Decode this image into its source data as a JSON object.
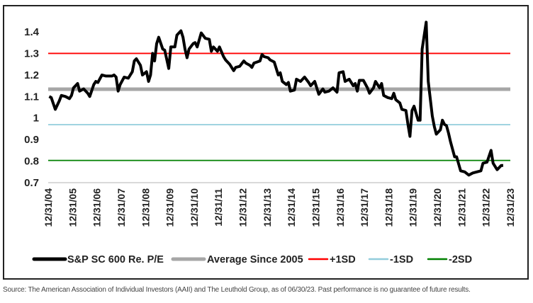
{
  "chart_data": {
    "type": "line",
    "title": "",
    "xlabel": "",
    "ylabel": "",
    "ylim": [
      0.7,
      1.4
    ],
    "yticks": [
      "0.7",
      "0.8",
      "0.9",
      "1",
      "1.1",
      "1.2",
      "1.3",
      "1.4"
    ],
    "xticks": [
      "12/31/04",
      "12/31/05",
      "12/31/06",
      "12/31/07",
      "12/31/08",
      "12/31/09",
      "12/31/10",
      "12/31/11",
      "12/31/12",
      "12/31/13",
      "12/31/14",
      "12/31/15",
      "12/31/16",
      "12/31/17",
      "12/31/18",
      "12/31/19",
      "12/31/20",
      "12/31/21",
      "12/31/22",
      "12/31/23"
    ],
    "grid": false,
    "legend_placement": "bottom",
    "series": [
      {
        "name": "S&P SC 600 Re. P/E",
        "color": "#000000",
        "x": [
          "2005-01",
          "2005-02",
          "2005-04",
          "2005-06",
          "2005-07",
          "2005-09",
          "2005-11",
          "2005-12",
          "2006-01",
          "2006-03",
          "2006-04",
          "2006-06",
          "2006-08",
          "2006-09",
          "2006-11",
          "2006-12",
          "2007-01",
          "2007-03",
          "2007-05",
          "2007-08",
          "2007-09",
          "2007-10",
          "2007-11",
          "2007-12",
          "2008-02",
          "2008-04",
          "2008-06",
          "2008-07",
          "2008-08",
          "2008-10",
          "2008-11",
          "2009-01",
          "2009-02",
          "2009-03",
          "2009-04",
          "2009-05",
          "2009-06",
          "2009-07",
          "2009-09",
          "2009-10",
          "2009-12",
          "2010-01",
          "2010-03",
          "2010-04",
          "2010-06",
          "2010-07",
          "2010-08",
          "2010-09",
          "2010-10",
          "2010-12",
          "2011-01",
          "2011-02",
          "2011-04",
          "2011-06",
          "2011-08",
          "2011-09",
          "2011-10",
          "2011-12",
          "2012-01",
          "2012-03",
          "2012-04",
          "2012-06",
          "2012-08",
          "2012-09",
          "2012-11",
          "2013-01",
          "2013-02",
          "2013-04",
          "2013-05",
          "2013-06",
          "2013-09",
          "2013-10",
          "2013-11",
          "2014-01",
          "2014-02",
          "2014-04",
          "2014-06",
          "2014-07",
          "2014-08",
          "2014-10",
          "2014-11",
          "2014-12",
          "2015-02",
          "2015-03",
          "2015-05",
          "2015-07",
          "2015-09",
          "2015-10",
          "2015-12",
          "2016-02",
          "2016-04",
          "2016-05",
          "2016-07",
          "2016-09",
          "2016-11",
          "2016-12",
          "2017-02",
          "2017-03",
          "2017-05",
          "2017-07",
          "2017-08",
          "2017-09",
          "2017-10",
          "2017-12",
          "2018-02",
          "2018-03",
          "2018-05",
          "2018-06",
          "2018-08",
          "2018-09",
          "2018-10",
          "2018-12",
          "2019-02",
          "2019-03",
          "2019-04",
          "2019-06",
          "2019-07",
          "2019-09",
          "2019-10",
          "2019-11",
          "2019-12",
          "2020-01",
          "2020-03",
          "2020-04",
          "2020-05",
          "2020-07",
          "2020-08",
          "2020-10",
          "2020-11",
          "2020-12",
          "2021-02",
          "2021-03",
          "2021-04",
          "2021-05",
          "2021-06",
          "2021-07",
          "2021-09",
          "2021-10",
          "2021-12",
          "2022-02",
          "2022-04",
          "2022-06",
          "2022-08",
          "2022-10",
          "2022-11",
          "2023-01",
          "2023-03",
          "2023-04",
          "2023-06",
          "2023-08",
          "2023-09"
        ],
        "values": [
          1.1,
          1.095,
          1.04,
          1.08,
          1.105,
          1.1,
          1.09,
          1.105,
          1.14,
          1.16,
          1.125,
          1.135,
          1.115,
          1.1,
          1.155,
          1.17,
          1.165,
          1.2,
          1.195,
          1.195,
          1.2,
          1.19,
          1.125,
          1.155,
          1.19,
          1.185,
          1.215,
          1.265,
          1.275,
          1.245,
          1.2,
          1.215,
          1.17,
          1.2,
          1.3,
          1.265,
          1.345,
          1.375,
          1.32,
          1.315,
          1.23,
          1.33,
          1.33,
          1.385,
          1.405,
          1.375,
          1.32,
          1.28,
          1.32,
          1.345,
          1.35,
          1.33,
          1.395,
          1.37,
          1.365,
          1.31,
          1.33,
          1.31,
          1.33,
          1.285,
          1.27,
          1.25,
          1.22,
          1.235,
          1.24,
          1.265,
          1.255,
          1.245,
          1.235,
          1.255,
          1.265,
          1.295,
          1.285,
          1.28,
          1.27,
          1.26,
          1.2,
          1.21,
          1.17,
          1.155,
          1.165,
          1.125,
          1.13,
          1.18,
          1.17,
          1.19,
          1.165,
          1.15,
          1.17,
          1.11,
          1.135,
          1.12,
          1.125,
          1.14,
          1.12,
          1.21,
          1.215,
          1.17,
          1.18,
          1.15,
          1.16,
          1.125,
          1.175,
          1.175,
          1.14,
          1.115,
          1.14,
          1.17,
          1.14,
          1.16,
          1.105,
          1.095,
          1.09,
          1.115,
          1.085,
          1.07,
          1.04,
          1.035,
          0.97,
          0.915,
          1.035,
          1.055,
          0.99,
          0.99,
          1.32,
          1.445,
          1.17,
          1.01,
          0.96,
          0.925,
          0.945,
          0.99,
          0.97,
          0.965,
          0.93,
          0.89,
          0.82,
          0.82,
          0.755,
          0.75,
          0.735,
          0.745,
          0.75,
          0.755,
          0.79,
          0.795,
          0.85,
          0.79,
          0.76,
          0.78,
          0.78
        ]
      },
      {
        "name": "Average Since 2005",
        "color": "#a6a6a6",
        "constant": 1.134
      },
      {
        "name": "+1SD",
        "color": "#ff0000",
        "constant": 1.3
      },
      {
        "name": "-1SD",
        "color": "#92cddc",
        "constant": 0.969
      },
      {
        "name": "-2SD",
        "color": "#008000",
        "constant": 0.803
      }
    ]
  },
  "source": "Source: The American Association of Individual Investors (AAII) and The Leuthold Group, as of 06/30/23. Past performance is no guarantee of future results."
}
